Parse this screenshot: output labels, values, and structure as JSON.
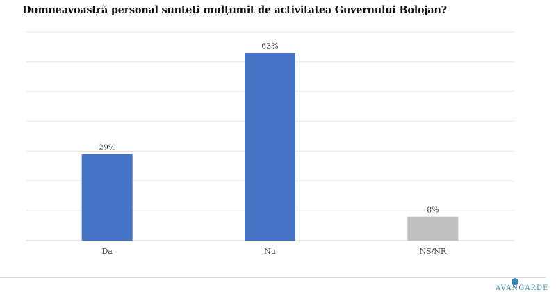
{
  "chart_data": {
    "type": "bar",
    "title": "Dumneavoastră personal sunteţi mulţumit de activitatea Guvernului Bolojan?",
    "categories": [
      "Da",
      "Nu",
      "NS/NR"
    ],
    "values": [
      29,
      63,
      8
    ],
    "data_labels": [
      "29%",
      "63%",
      "8%"
    ],
    "colors": [
      "#4472c4",
      "#4472c4",
      "#bfbfbf"
    ],
    "ylim": [
      0,
      70
    ],
    "grid": true,
    "xlabel": "",
    "ylabel": ""
  },
  "logo": {
    "text": "AVANGARDE",
    "color": "#3a8ab8"
  }
}
